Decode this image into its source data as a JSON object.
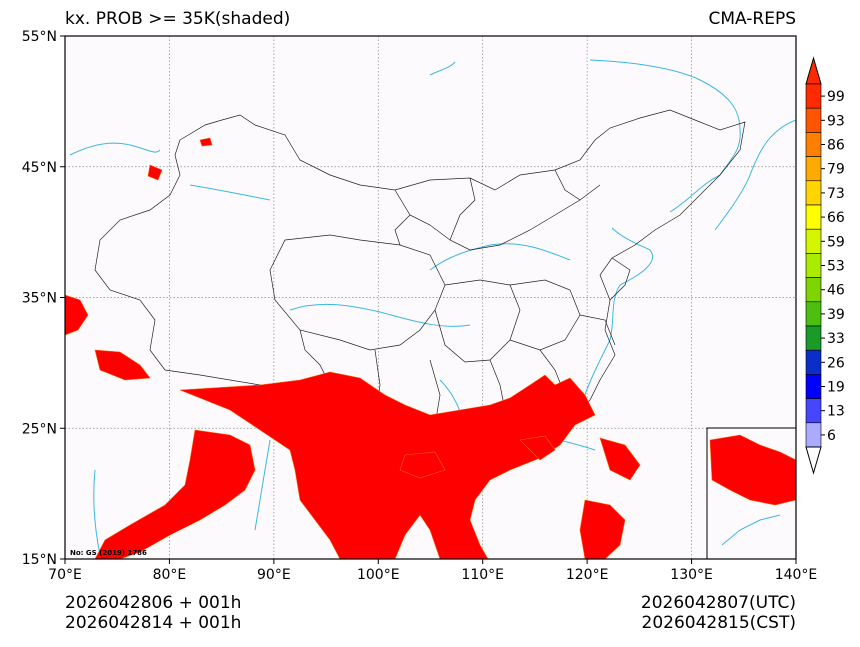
{
  "title_left": "kx. PROB >= 35K(shaded)",
  "title_right": "CMA-REPS",
  "map": {
    "lat_labels": [
      "55°N",
      "45°N",
      "35°N",
      "25°N",
      "15°N"
    ],
    "lon_labels": [
      "70°E",
      "80°E",
      "90°E",
      "100°E",
      "110°E",
      "120°E",
      "130°E",
      "140°E"
    ],
    "lat_range": [
      15,
      55
    ],
    "lon_range": [
      70,
      140
    ],
    "credit": "No: GS (2019) 1786"
  },
  "colorbar": {
    "levels": [
      "99",
      "93",
      "86",
      "79",
      "73",
      "66",
      "59",
      "53",
      "46",
      "39",
      "33",
      "26",
      "19",
      "13",
      "6"
    ],
    "colors": [
      "#ff2a00",
      "#ff5500",
      "#ff8000",
      "#ffaa00",
      "#ffd400",
      "#ffff00",
      "#d4f500",
      "#aaeb00",
      "#7fd400",
      "#4cbf10",
      "#1a9a2a",
      "#0a2fc8",
      "#0000ff",
      "#4646ff",
      "#aaaaff"
    ]
  },
  "footer": {
    "init_utc": "2026042806  +  001h",
    "init_cst": "2026042814  +  001h",
    "valid_utc": "2026042807(UTC)",
    "valid_cst": "2026042815(CST)"
  },
  "colors": {
    "shade": "#ff0000",
    "river": "#3bb8e0",
    "border": "#000000",
    "grid": "#888888"
  }
}
